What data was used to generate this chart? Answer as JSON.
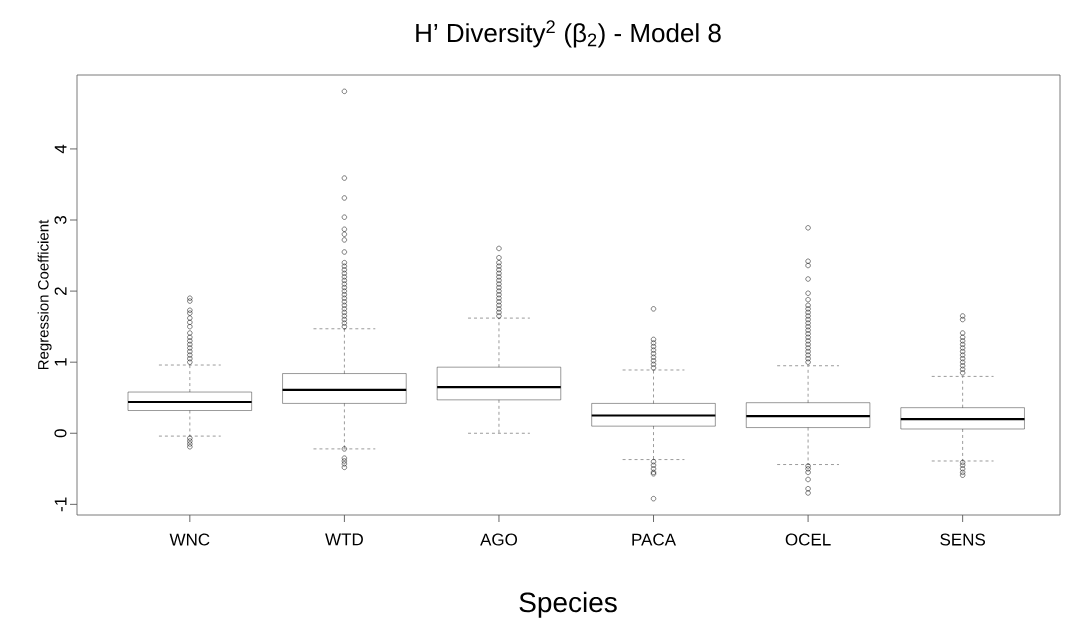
{
  "chart_data": {
    "type": "box",
    "title": "H’ Diversity$^{2}$ (β$_{2}$) - Model 8",
    "xlabel": "Species",
    "ylabel": "Regression Coefficient",
    "categories": [
      "WNC",
      "WTD",
      "AGO",
      "PACA",
      "OCEL",
      "SENS"
    ],
    "boxes": [
      {
        "low": -0.04,
        "q1": 0.32,
        "median": 0.44,
        "q3": 0.58,
        "high": 0.96,
        "outliers": [
          -0.07,
          -0.11,
          -0.15,
          -0.19,
          1.0,
          1.05,
          1.1,
          1.15,
          1.2,
          1.25,
          1.3,
          1.35,
          1.41,
          1.5,
          1.56,
          1.62,
          1.69,
          1.73,
          1.86,
          1.9
        ]
      },
      {
        "low": -0.22,
        "q1": 0.42,
        "median": 0.61,
        "q3": 0.84,
        "high": 1.47,
        "outliers": [
          -0.22,
          -0.35,
          -0.39,
          -0.43,
          -0.48,
          1.5,
          1.55,
          1.6,
          1.65,
          1.7,
          1.75,
          1.8,
          1.85,
          1.9,
          1.95,
          2.0,
          2.05,
          2.1,
          2.15,
          2.2,
          2.25,
          2.3,
          2.35,
          2.4,
          2.55,
          2.72,
          2.8,
          2.87,
          3.04,
          3.31,
          3.59,
          4.81
        ]
      },
      {
        "low": 0.0,
        "q1": 0.47,
        "median": 0.65,
        "q3": 0.93,
        "high": 1.62,
        "outliers": [
          1.65,
          1.7,
          1.75,
          1.8,
          1.85,
          1.9,
          1.95,
          2.0,
          2.05,
          2.1,
          2.15,
          2.2,
          2.25,
          2.3,
          2.35,
          2.4,
          2.47,
          2.6
        ]
      },
      {
        "low": -0.37,
        "q1": 0.1,
        "median": 0.25,
        "q3": 0.42,
        "high": 0.89,
        "outliers": [
          -0.4,
          -0.45,
          -0.5,
          -0.55,
          -0.57,
          -0.92,
          0.92,
          0.97,
          1.02,
          1.07,
          1.12,
          1.17,
          1.22,
          1.27,
          1.32,
          1.75
        ]
      },
      {
        "low": -0.44,
        "q1": 0.08,
        "median": 0.24,
        "q3": 0.43,
        "high": 0.95,
        "outliers": [
          -0.46,
          -0.5,
          -0.55,
          -0.65,
          -0.78,
          -0.84,
          1.0,
          1.05,
          1.1,
          1.15,
          1.2,
          1.25,
          1.3,
          1.35,
          1.4,
          1.45,
          1.5,
          1.55,
          1.6,
          1.65,
          1.7,
          1.75,
          1.8,
          1.88,
          1.97,
          2.17,
          2.36,
          2.42,
          2.89
        ]
      },
      {
        "low": -0.39,
        "q1": 0.06,
        "median": 0.2,
        "q3": 0.36,
        "high": 0.8,
        "outliers": [
          -0.41,
          -0.45,
          -0.5,
          -0.55,
          -0.59,
          0.85,
          0.9,
          0.95,
          1.0,
          1.05,
          1.1,
          1.15,
          1.2,
          1.25,
          1.3,
          1.35,
          1.41,
          1.6,
          1.65
        ]
      }
    ],
    "ylim": [
      -1.15,
      5.04
    ],
    "yticks": [
      -1,
      0,
      1,
      2,
      3,
      4
    ]
  }
}
